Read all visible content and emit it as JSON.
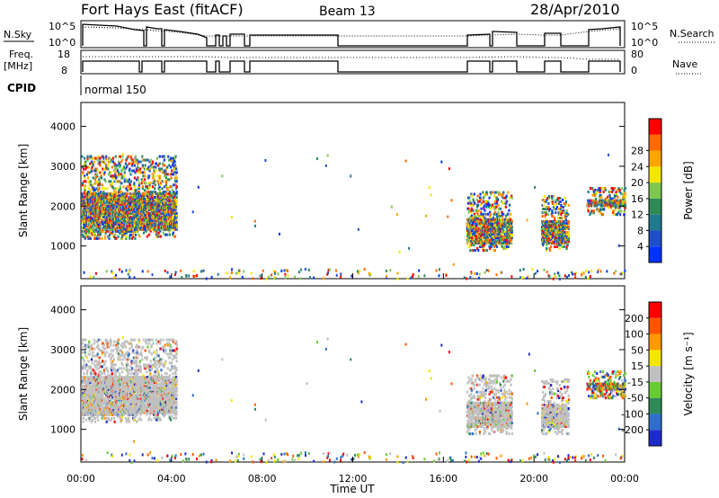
{
  "header": {
    "station": "Fort Hays East (fitACF)",
    "beam": "Beam 13",
    "date": "28/Apr/2010"
  },
  "summary_panels": {
    "nsky_label": "N.Sky",
    "nsky_ticks": [
      "10^5",
      "10^0"
    ],
    "nsearch_label": "N.Search",
    "nsearch_ticks": [
      "10^5",
      "10^0"
    ],
    "freq_label": [
      "Freq.",
      "[MHz]"
    ],
    "freq_ticks": [
      "18",
      "8"
    ],
    "nave_label": "Nave",
    "nave_ticks": [
      "80",
      "0"
    ],
    "cpid_label": "CPID",
    "cpid_value": "normal 150"
  },
  "colors": {
    "frame": "#000000",
    "ground_scatter": "#c0c0c0"
  },
  "chart_data": [
    {
      "type": "heatmap",
      "name": "power",
      "ylabel": "Slant Range [km]",
      "yticks": [
        "1000",
        "2000",
        "3000",
        "4000"
      ],
      "ylim": [
        180,
        4600
      ],
      "xlim": [
        0,
        24
      ],
      "colorbar_label": "Power [dB]",
      "colorbar_ticks": [
        "4",
        "8",
        "12",
        "16",
        "20",
        "24",
        "28"
      ],
      "colorbar_colors": [
        "#0033ff",
        "#1f4fc8",
        "#1e7a8c",
        "#2e8b57",
        "#7ec850",
        "#f5e600",
        "#ffa500",
        "#ff6a00",
        "#ff0000"
      ],
      "regions": [
        {
          "t": [
            0,
            2.5
          ],
          "r": [
            1200,
            3300
          ],
          "level": "mixed"
        },
        {
          "t": [
            2.5,
            4.2
          ],
          "r": [
            1250,
            3300
          ],
          "level": "mixed"
        },
        {
          "t": [
            17,
            19
          ],
          "r": [
            900,
            2400
          ],
          "level": "mixed"
        },
        {
          "t": [
            20.3,
            21.5
          ],
          "r": [
            900,
            2300
          ],
          "level": "mixed"
        },
        {
          "t": [
            22.3,
            24
          ],
          "r": [
            1800,
            2500
          ],
          "level": "strong"
        }
      ]
    },
    {
      "type": "heatmap",
      "name": "velocity",
      "ylabel": "Slant Range [km]",
      "yticks": [
        "1000",
        "2000",
        "3000",
        "4000"
      ],
      "ylim": [
        180,
        4600
      ],
      "xlim": [
        0,
        24
      ],
      "colorbar_label": "Velocity [m s⁻¹]",
      "colorbar_ticks": [
        "200",
        "100",
        "50",
        "15",
        "-15",
        "-50",
        "-100",
        "-200"
      ],
      "colorbar_colors": [
        "#1e2bcc",
        "#2e6fcc",
        "#2e8b57",
        "#66cc33",
        "#c0c0c0",
        "#f5e600",
        "#ff9900",
        "#ff5500",
        "#ff0000"
      ],
      "regions": [
        {
          "t": [
            0,
            2.5
          ],
          "r": [
            1200,
            3300
          ],
          "level": "ground"
        },
        {
          "t": [
            2.5,
            4.2
          ],
          "r": [
            1250,
            3300
          ],
          "level": "ground"
        },
        {
          "t": [
            17,
            19
          ],
          "r": [
            900,
            2400
          ],
          "level": "ground"
        },
        {
          "t": [
            20.3,
            21.5
          ],
          "r": [
            900,
            2300
          ],
          "level": "ground"
        },
        {
          "t": [
            22.3,
            24
          ],
          "r": [
            1800,
            2500
          ],
          "level": "mixed"
        }
      ]
    }
  ],
  "x_axis": {
    "label": "Time UT",
    "ticks": [
      "00:00",
      "04:00",
      "08:00",
      "12:00",
      "16:00",
      "20:00",
      "00:00"
    ]
  }
}
